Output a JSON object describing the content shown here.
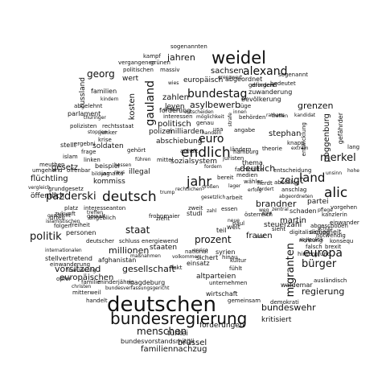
{
  "words": [
    {
      "text": "deutschen"
    },
    {
      "text": "bundesregierung"
    },
    {
      "text": "deutsch"
    },
    {
      "text": "weidel"
    },
    {
      "text": "jahr"
    },
    {
      "text": "endlich"
    },
    {
      "text": "alic"
    },
    {
      "text": "land"
    },
    {
      "text": "pazderski"
    },
    {
      "text": "gauland"
    },
    {
      "text": "politik"
    },
    {
      "text": "alexand"
    },
    {
      "text": "bundestag"
    },
    {
      "text": "euro"
    },
    {
      "text": "migranten"
    },
    {
      "text": "europa"
    },
    {
      "text": "merkel"
    },
    {
      "text": "bürger"
    },
    {
      "text": "georg"
    },
    {
      "text": "menschen"
    },
    {
      "text": "staat"
    },
    {
      "text": "prozent"
    },
    {
      "text": "regierung"
    },
    {
      "text": "zeigt"
    },
    {
      "text": "brandner"
    },
    {
      "text": "bundeswehr"
    },
    {
      "text": "jahren"
    },
    {
      "text": "asylbewerb"
    },
    {
      "text": "deutlich"
    },
    {
      "text": "grenzen"
    },
    {
      "text": "stephan"
    },
    {
      "text": "frauen"
    },
    {
      "text": "millionen"
    },
    {
      "text": "gesellschaft"
    },
    {
      "text": "vorsitzend"
    },
    {
      "text": "europäischen"
    },
    {
      "text": "familiennachzug"
    },
    {
      "text": "brüssel"
    },
    {
      "text": "türkei"
    },
    {
      "text": "forderungen"
    },
    {
      "text": "kritisiert"
    },
    {
      "text": "poggenburg"
    },
    {
      "text": "sachsen"
    },
    {
      "text": "europäisch"
    },
    {
      "text": "polizei"
    },
    {
      "text": "politisch"
    },
    {
      "text": "staaten"
    },
    {
      "text": "martin"
    },
    {
      "text": "flüchtling"
    },
    {
      "text": "öffentlich"
    },
    {
      "text": "gesetz"
    },
    {
      "text": "kosten"
    },
    {
      "text": "russland"
    },
    {
      "text": "milliarden"
    },
    {
      "text": "kommiss"
    },
    {
      "text": "illegal"
    },
    {
      "text": "soldaten"
    },
    {
      "text": "sozialsystem"
    },
    {
      "text": "abschiebung"
    },
    {
      "text": "zahlen"
    },
    {
      "text": "leyen"
    },
    {
      "text": "familien"
    },
    {
      "text": "parlament"
    },
    {
      "text": "wert"
    },
    {
      "text": "sogenannten"
    },
    {
      "text": "kampf"
    },
    {
      "text": "grünen"
    },
    {
      "text": "vergangenen"
    },
    {
      "text": "politischen"
    },
    {
      "text": "massiv"
    },
    {
      "text": "zuwanderung"
    },
    {
      "text": "bevölkerung"
    },
    {
      "text": "abgeordnet"
    },
    {
      "text": "sogenannt"
    },
    {
      "text": "bedeutet"
    },
    {
      "text": "partei"
    },
    {
      "text": "sicherheit"
    },
    {
      "text": "richtung"
    },
    {
      "text": "schaden"
    },
    {
      "text": "kanzlerin"
    },
    {
      "text": "einwander"
    },
    {
      "text": "digitalisierung"
    },
    {
      "text": "afghanistan"
    },
    {
      "text": "stellvertretend"
    },
    {
      "text": "internationalen"
    },
    {
      "text": "einwanderung"
    },
    {
      "text": "finanzierung"
    },
    {
      "text": "opfer"
    },
    {
      "text": "mitterweil"
    },
    {
      "text": "handelt"
    },
    {
      "text": "christen"
    },
    {
      "text": "familie"
    },
    {
      "text": "minderjährig"
    },
    {
      "text": "magdeburg"
    },
    {
      "text": "bundesverfassungsgericht"
    },
    {
      "text": "bundesvorstandsmitgli"
    },
    {
      "text": "maßnahmen"
    },
    {
      "text": "einsatz"
    },
    {
      "text": "altparteien"
    },
    {
      "text": "unternehmen"
    },
    {
      "text": "wirtschaft"
    },
    {
      "text": "demokrati"
    },
    {
      "text": "gemeinsam"
    },
    {
      "text": "ausländisch"
    },
    {
      "text": "waldemar"
    },
    {
      "text": "forderung"
    },
    {
      "text": "abschlag"
    },
    {
      "text": "ergebni"
    },
    {
      "text": "meuthen"
    },
    {
      "text": "grundgesetz"
    },
    {
      "text": "angeblich"
    },
    {
      "text": "freiheit"
    },
    {
      "text": "personen"
    },
    {
      "text": "deutscher"
    },
    {
      "text": "schluss"
    },
    {
      "text": "energiewend"
    },
    {
      "text": "krise"
    },
    {
      "text": "vergleich"
    },
    {
      "text": "umgehend"
    },
    {
      "text": "offenbar"
    },
    {
      "text": "bildung"
    },
    {
      "text": "islam"
    },
    {
      "text": "linken"
    },
    {
      "text": "beispiel"
    },
    {
      "text": "ländern"
    },
    {
      "text": "hamburg"
    },
    {
      "text": "thema"
    },
    {
      "text": "theorie"
    },
    {
      "text": "anschlag"
    },
    {
      "text": "abgeordneten"
    },
    {
      "text": "steuerzahl"
    },
    {
      "text": "sieht"
    },
    {
      "text": "welt"
    },
    {
      "text": "syrien"
    },
    {
      "text": "national"
    },
    {
      "text": "hinau"
    },
    {
      "text": "sichert"
    },
    {
      "text": "kultur"
    },
    {
      "text": "fühlt"
    },
    {
      "text": "falsch"
    },
    {
      "text": "brexit"
    },
    {
      "text": "hintergrund"
    },
    {
      "text": "asylpolitik"
    },
    {
      "text": "schulz"
    },
    {
      "text": "konsequ"
    },
    {
      "text": "fachkräfte"
    },
    {
      "text": "polizisten"
    },
    {
      "text": "rechtsstaat"
    },
    {
      "text": "thüringer"
    },
    {
      "text": "junker"
    },
    {
      "text": "stoppen"
    },
    {
      "text": "abgelehnt"
    },
    {
      "text": "kindern"
    },
    {
      "text": "ehrhorn"
    },
    {
      "text": "interessen"
    },
    {
      "text": "möglichkeit"
    },
    {
      "text": "behörden"
    },
    {
      "text": "strafe"
    },
    {
      "text": "knapp"
    },
    {
      "text": "rathaus"
    },
    {
      "text": "gefährder"
    },
    {
      "text": "extrem"
    },
    {
      "text": "grenzwert"
    },
    {
      "text": "lang"
    },
    {
      "text": "hohe"
    },
    {
      "text": "entscheidung"
    },
    {
      "text": "unsinn"
    },
    {
      "text": "vorgehen"
    },
    {
      "text": "pflege"
    },
    {
      "text": "abgeschoben"
    },
    {
      "text": "notwendig"
    },
    {
      "text": "entwicklung"
    },
    {
      "text": "zentral"
    },
    {
      "text": "kandidat"
    },
    {
      "text": "erfolg"
    },
    {
      "text": "wähler"
    },
    {
      "text": "lager"
    },
    {
      "text": "fordert"
    },
    {
      "text": "arbeit"
    },
    {
      "text": "herdt"
    },
    {
      "text": "bereit"
    },
    {
      "text": "medien"
    },
    {
      "text": "großen"
    },
    {
      "text": "enrico"
    },
    {
      "text": "volkommen"
    },
    {
      "text": "frohnmaier"
    },
    {
      "text": "erst"
    },
    {
      "text": "weg"
    },
    {
      "text": "österreich"
    },
    {
      "text": "fünf"
    },
    {
      "text": "interesse"
    },
    {
      "text": "anton"
    },
    {
      "text": "platz"
    },
    {
      "text": "stellt"
    },
    {
      "text": "gewalt"
    },
    {
      "text": "zukunft"
    },
    {
      "text": "treffen"
    },
    {
      "text": "folgen"
    },
    {
      "text": "urteil"
    },
    {
      "text": "geschicht"
    },
    {
      "text": "islamistischen"
    },
    {
      "text": "usa"
    },
    {
      "text": "hessen"
    },
    {
      "text": "studi"
    },
    {
      "text": "zahl"
    },
    {
      "text": "fordern"
    },
    {
      "text": "frage"
    },
    {
      "text": "anhalt"
    },
    {
      "text": "juristen"
    },
    {
      "text": "jamaika"
    },
    {
      "text": "raus"
    },
    {
      "text": "teil"
    },
    {
      "text": "paul"
    },
    {
      "text": "essen"
    },
    {
      "text": "innen"
    },
    {
      "text": "gefordert"
    },
    {
      "text": "dringend"
    },
    {
      "text": "trump"
    },
    {
      "text": "treffen"
    },
    {
      "text": "lüge"
    },
    {
      "text": "handeln"
    },
    {
      "text": "entscheiden"
    },
    {
      "text": "wies"
    },
    {
      "text": "gehört"
    },
    {
      "text": "mittel"
    },
    {
      "text": "zieht"
    },
    {
      "text": "führen"
    },
    {
      "text": "rechtlichen"
    },
    {
      "text": "angabe"
    },
    {
      "text": "neue"
    },
    {
      "text": "gesetzlich"
    },
    {
      "text": "zweit"
    },
    {
      "text": "genau"
    },
    {
      "text": "fakt"
    },
    {
      "text": "ezb"
    },
    {
      "text": "anlass"
    },
    {
      "text": "wichtig"
    },
    {
      "text": "einzig"
    }
  ]
}
